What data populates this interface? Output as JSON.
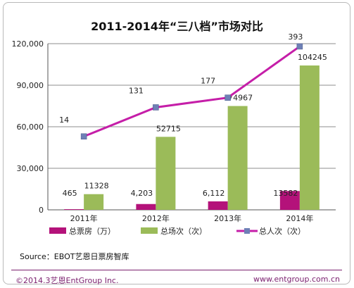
{
  "chart_data": {
    "type": "bar",
    "title": "2011-2014年“三八档”市场对比",
    "categories": [
      "2011年",
      "2012年",
      "2013年",
      "2014年"
    ],
    "ylim": [
      0,
      120000
    ],
    "yticks": [
      "0",
      "30,000",
      "60,000",
      "90,000",
      "120,000"
    ],
    "ytick_values": [
      0,
      30000,
      60000,
      90000,
      120000
    ],
    "grid": true,
    "legend_position": "bottom",
    "series": [
      {
        "name": "总票房（万）",
        "kind": "bar",
        "color": "#b4127a",
        "values": [
          465,
          4203,
          6112,
          13582
        ],
        "labels": [
          "465",
          "4,203",
          "6,112",
          "13582"
        ]
      },
      {
        "name": "总场次（次）",
        "kind": "bar",
        "color": "#9bbb59",
        "values": [
          11328,
          52715,
          74967,
          104245
        ],
        "labels": [
          "11328",
          "52715",
          "74967",
          "104245"
        ]
      },
      {
        "name": "总人次（次）",
        "kind": "line",
        "color": "#c51ea8",
        "marker_color": "#6e80b6",
        "values": [
          53000,
          74000,
          81000,
          118000
        ],
        "labels": [
          "14",
          "131",
          "177",
          "393"
        ]
      }
    ]
  },
  "source": "Source：EBOT艺恩日票房智库",
  "footer": {
    "left": "©2014.3艺恩EntGroup Inc.",
    "right": "www.entgroup.com.cn"
  }
}
